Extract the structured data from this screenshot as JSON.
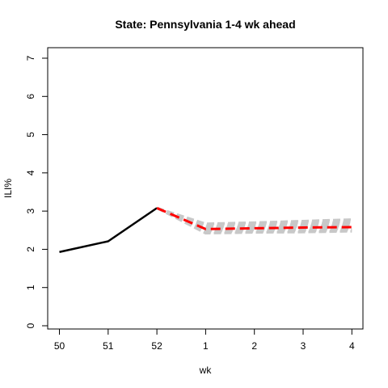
{
  "chart_data": {
    "type": "line",
    "title": "State: Pennsylvania 1-4 wk ahead",
    "xlabel": "wk",
    "ylabel": "ILI%",
    "x_categories": [
      "50",
      "51",
      "52",
      "1",
      "2",
      "3",
      "4"
    ],
    "ylim": [
      0,
      7
    ],
    "y_ticks": [
      "0",
      "1",
      "2",
      "3",
      "4",
      "5",
      "6",
      "7"
    ],
    "grid": false,
    "legend": "none",
    "colors": {
      "observed": "#000000",
      "forecast": "#ff0000",
      "ensemble": "#c8c8c8"
    },
    "observed": {
      "x": [
        "50",
        "51",
        "52"
      ],
      "y": [
        1.93,
        2.21,
        3.08
      ]
    },
    "forecast": {
      "x": [
        "52",
        "1",
        "2",
        "3",
        "4"
      ],
      "y": [
        3.08,
        2.53,
        2.55,
        2.57,
        2.58
      ]
    },
    "ensemble": [
      [
        3.08,
        2.42,
        2.44,
        2.45,
        2.47
      ],
      [
        3.08,
        2.45,
        2.47,
        2.48,
        2.5
      ],
      [
        3.08,
        2.48,
        2.5,
        2.51,
        2.53
      ],
      [
        3.08,
        2.51,
        2.53,
        2.55,
        2.56
      ],
      [
        3.08,
        2.55,
        2.57,
        2.59,
        2.61
      ],
      [
        3.08,
        2.58,
        2.6,
        2.62,
        2.65
      ],
      [
        3.08,
        2.61,
        2.63,
        2.66,
        2.69
      ],
      [
        3.08,
        2.64,
        2.67,
        2.7,
        2.73
      ],
      [
        3.08,
        2.67,
        2.7,
        2.74,
        2.78
      ]
    ]
  }
}
